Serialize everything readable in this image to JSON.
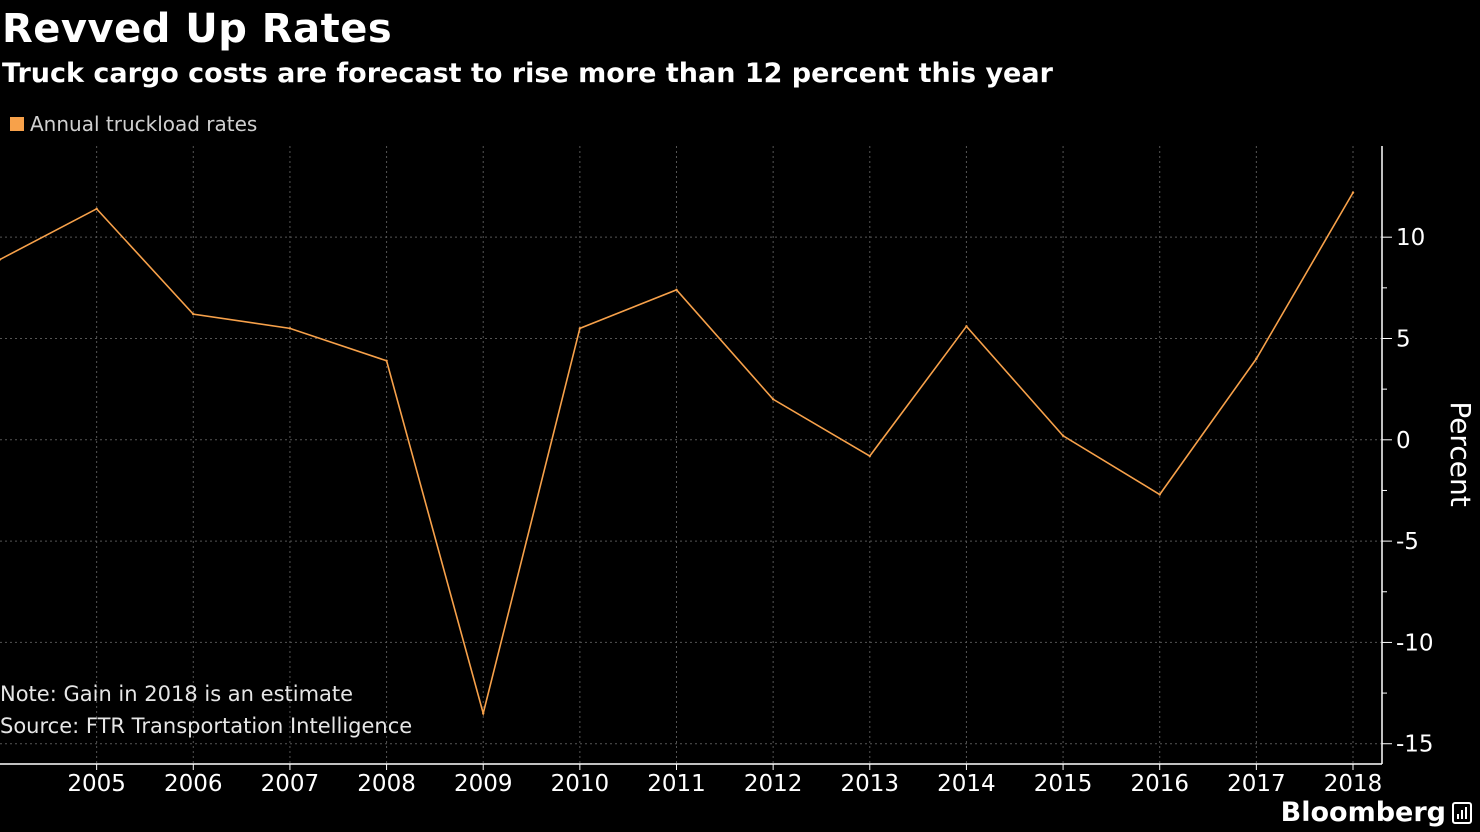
{
  "chart_data": {
    "type": "line",
    "title": "Revved Up Rates",
    "subtitle": "Truck cargo costs are forecast to rise more than 12 percent this year",
    "xlabel": "",
    "ylabel": "Percent",
    "x": [
      2004,
      2005,
      2006,
      2007,
      2008,
      2009,
      2010,
      2011,
      2012,
      2013,
      2014,
      2015,
      2016,
      2017,
      2018
    ],
    "xticks": [
      "2005",
      "2006",
      "2007",
      "2008",
      "2009",
      "2010",
      "2011",
      "2012",
      "2013",
      "2014",
      "2015",
      "2016",
      "2017",
      "2018"
    ],
    "yticks": [
      "10",
      "5",
      "0",
      "-5",
      "-10",
      "-15"
    ],
    "ylim": [
      -16,
      14.5
    ],
    "xlim": [
      2004,
      2018.3
    ],
    "series": [
      {
        "name": "Annual truckload rates",
        "color": "#f7a14a",
        "values": [
          8.9,
          11.4,
          6.2,
          5.5,
          3.9,
          -13.5,
          5.5,
          7.4,
          2.0,
          -0.8,
          5.6,
          0.2,
          -2.7,
          4.0,
          12.2
        ]
      }
    ],
    "grid": true,
    "legend_position": "top-left"
  },
  "notes": {
    "note": "Note: Gain in 2018 is an estimate",
    "source": "Source: FTR Transportation Intelligence"
  },
  "brand": "Bloomberg",
  "brand_icon": "bar-chart-icon",
  "colors": {
    "background": "#000000",
    "line": "#f7a14a",
    "grid": "#555555",
    "axis": "#ffffff"
  }
}
